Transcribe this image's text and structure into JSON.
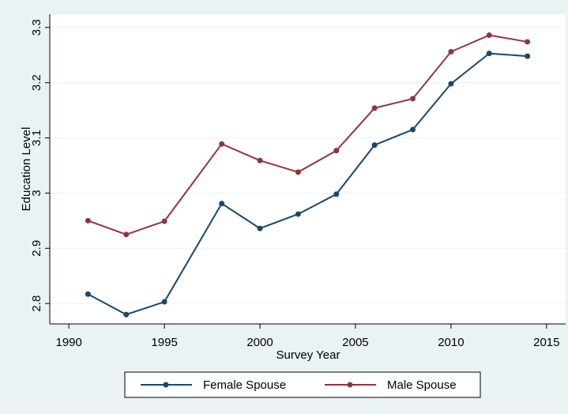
{
  "chart_data": {
    "type": "line",
    "x_label": "Survey Year",
    "y_label": "Education Level",
    "x": [
      1991,
      1993,
      1995,
      1998,
      2000,
      2002,
      2004,
      2006,
      2008,
      2010,
      2012,
      2014
    ],
    "series": [
      {
        "name": "Female Spouse",
        "color": "#1a476f",
        "values": [
          2.817,
          2.78,
          2.803,
          2.981,
          2.936,
          2.962,
          2.998,
          3.087,
          3.115,
          3.198,
          3.253,
          3.248
        ]
      },
      {
        "name": "Male Spouse",
        "color": "#90353b",
        "values": [
          2.95,
          2.925,
          2.949,
          3.089,
          3.059,
          3.038,
          3.077,
          3.154,
          3.171,
          3.256,
          3.286,
          3.274
        ]
      }
    ],
    "xlim": [
      1989,
      2016
    ],
    "xticks": [
      1990,
      1995,
      2000,
      2005,
      2010,
      2015
    ],
    "ylim": [
      2.763,
      3.324
    ],
    "yticks": [
      2.8,
      2.9,
      3,
      3.1,
      3.2,
      3.3
    ],
    "grid": true,
    "legend": "bottom"
  }
}
